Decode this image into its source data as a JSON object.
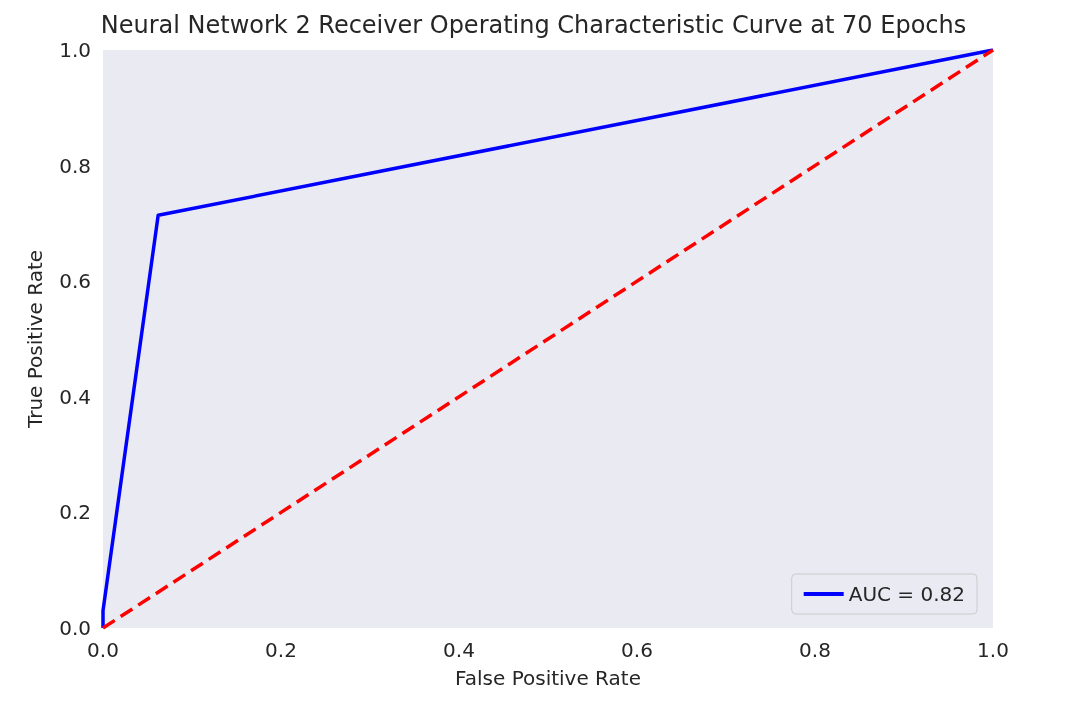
{
  "chart_data": {
    "type": "line",
    "title": "Neural Network 2 Receiver Operating Characteristic Curve at 70 Epochs",
    "xlabel": "False Positive Rate",
    "ylabel": "True Positive Rate",
    "series": [
      {
        "name": "AUC = 0.82",
        "color": "#0000ff",
        "x": [
          0,
          0,
          0.062,
          1
        ],
        "values": [
          0,
          0.03,
          0.714,
          1
        ],
        "line_style": "solid"
      },
      {
        "color": "#ff0000",
        "x": [
          0,
          1
        ],
        "values": [
          0,
          1
        ],
        "line_style": "dashed"
      }
    ],
    "xlim": [
      0,
      1
    ],
    "ylim": [
      0,
      1
    ],
    "xticks": [
      {
        "value": 0,
        "label": "0.0"
      },
      0.2,
      0.4,
      0.6,
      0.8,
      {
        "value": 1,
        "label": "1.0"
      }
    ],
    "yticks": [
      {
        "value": 0,
        "label": "0.0"
      },
      0.2,
      0.4,
      0.6,
      0.8,
      {
        "value": 1,
        "label": "1.0"
      }
    ],
    "grid": false,
    "legend": "bottom right",
    "marker": "none"
  }
}
